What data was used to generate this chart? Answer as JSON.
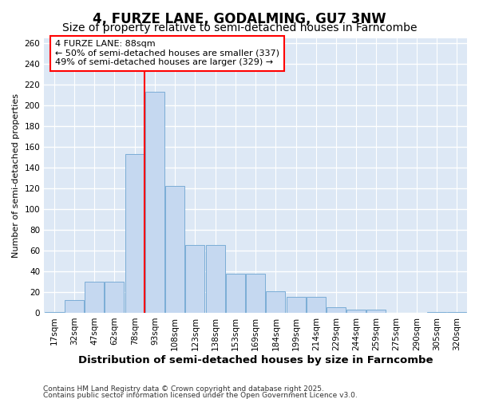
{
  "title": "4, FURZE LANE, GODALMING, GU7 3NW",
  "subtitle": "Size of property relative to semi-detached houses in Farncombe",
  "xlabel": "Distribution of semi-detached houses by size in Farncombe",
  "ylabel": "Number of semi-detached properties",
  "categories": [
    "17sqm",
    "32sqm",
    "47sqm",
    "62sqm",
    "78sqm",
    "93sqm",
    "108sqm",
    "123sqm",
    "138sqm",
    "153sqm",
    "169sqm",
    "184sqm",
    "199sqm",
    "214sqm",
    "229sqm",
    "244sqm",
    "259sqm",
    "275sqm",
    "290sqm",
    "305sqm",
    "320sqm"
  ],
  "bar_values": [
    1,
    12,
    30,
    30,
    153,
    213,
    122,
    65,
    65,
    38,
    38,
    21,
    15,
    15,
    5,
    3,
    3,
    0,
    0,
    1,
    1
  ],
  "bar_color": "#c5d8f0",
  "bar_edge_color": "#7badd6",
  "vline_color": "red",
  "vline_x": 5,
  "annotation_title": "4 FURZE LANE: 88sqm",
  "annotation_line1": "← 50% of semi-detached houses are smaller (337)",
  "annotation_line2": "49% of semi-detached houses are larger (329) →",
  "ylim_max": 265,
  "yticks": [
    0,
    20,
    40,
    60,
    80,
    100,
    120,
    140,
    160,
    180,
    200,
    220,
    240,
    260
  ],
  "plot_bg_color": "#dde8f5",
  "footer_line1": "Contains HM Land Registry data © Crown copyright and database right 2025.",
  "footer_line2": "Contains public sector information licensed under the Open Government Licence v3.0.",
  "title_fontsize": 12,
  "subtitle_fontsize": 10,
  "xlabel_fontsize": 9.5,
  "ylabel_fontsize": 8,
  "tick_fontsize": 7.5,
  "annotation_fontsize": 8,
  "footer_fontsize": 6.5
}
